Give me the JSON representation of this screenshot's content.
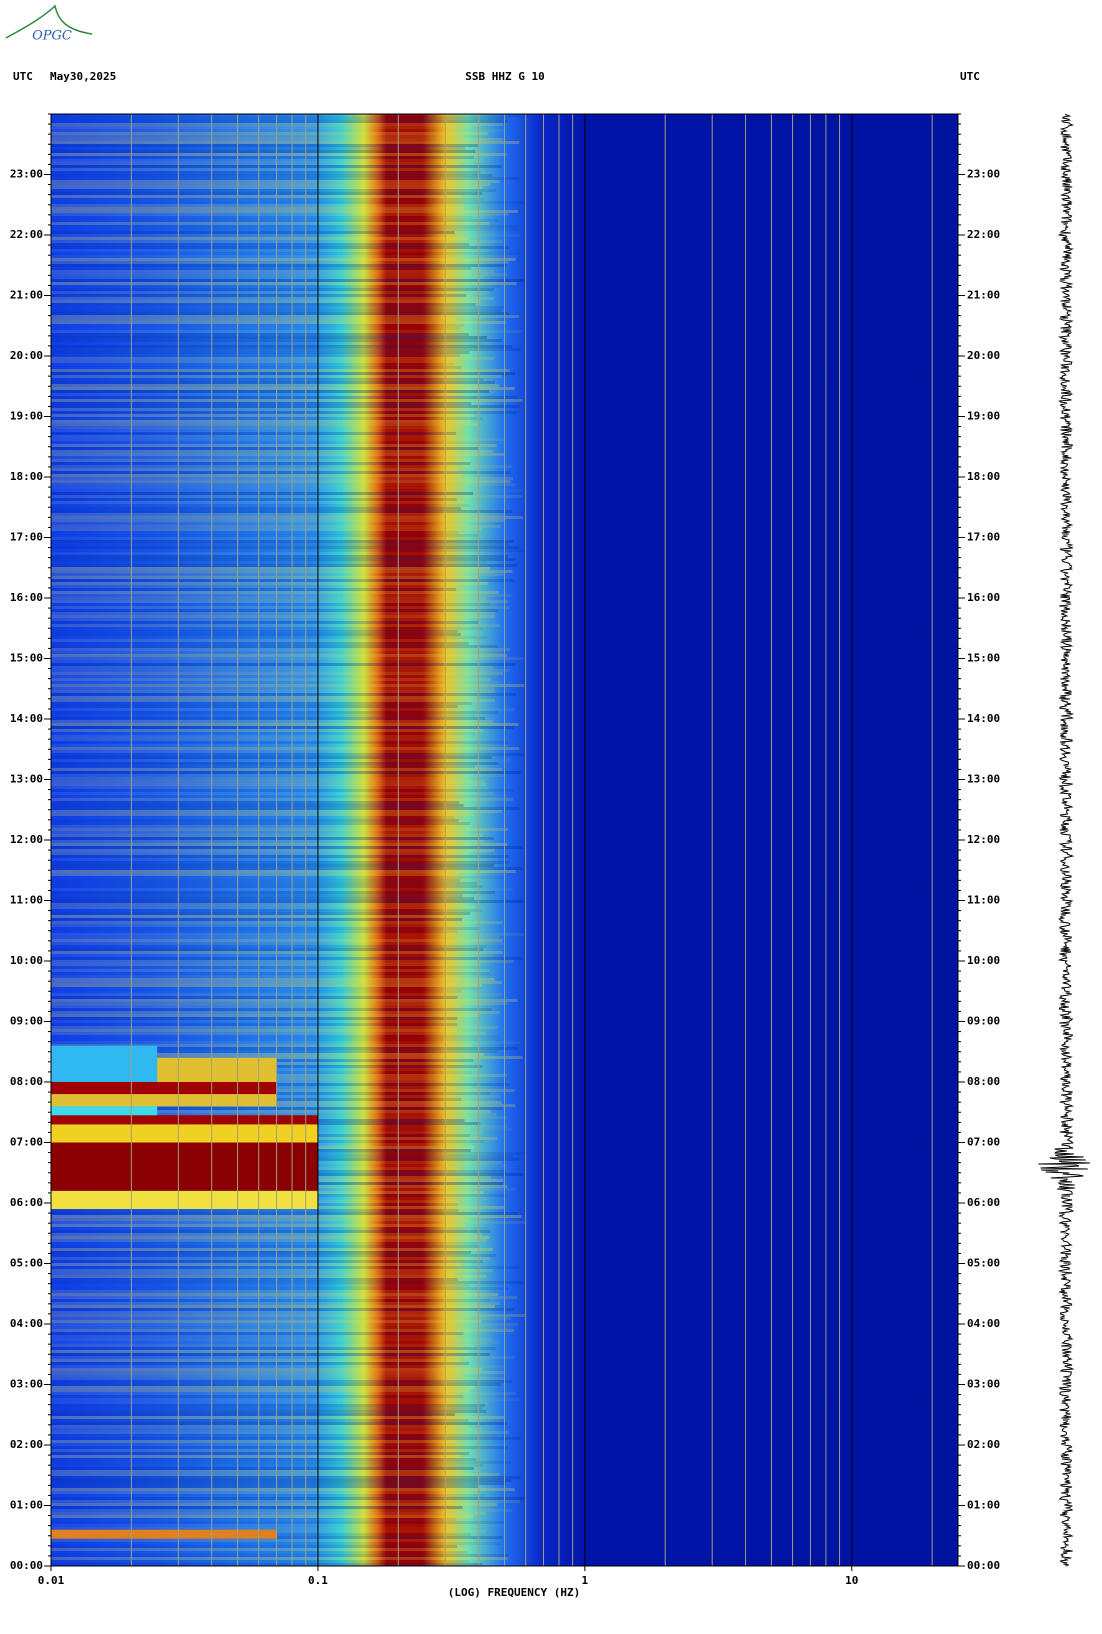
{
  "chart_data": {
    "type": "spectrogram",
    "logo": "OPGC",
    "title": "SSB HHZ G 10",
    "left_label": "UTC",
    "date": "May30,2025",
    "right_label": "UTC",
    "x_label": "(LOG) FREQUENCY (HZ)",
    "xscale": "log",
    "xlim": [
      0.01,
      25
    ],
    "xticks": [
      0.01,
      0.1,
      1,
      10
    ],
    "ylim": [
      0,
      24
    ],
    "yticks": [
      {
        "value": 0,
        "label": "00:00"
      },
      {
        "value": 1,
        "label": "01:00"
      },
      {
        "value": 2,
        "label": "02:00"
      },
      {
        "value": 3,
        "label": "03:00"
      },
      {
        "value": 4,
        "label": "04:00"
      },
      {
        "value": 5,
        "label": "05:00"
      },
      {
        "value": 6,
        "label": "06:00"
      },
      {
        "value": 7,
        "label": "07:00"
      },
      {
        "value": 8,
        "label": "08:00"
      },
      {
        "value": 9,
        "label": "09:00"
      },
      {
        "value": 10,
        "label": "10:00"
      },
      {
        "value": 11,
        "label": "11:00"
      },
      {
        "value": 12,
        "label": "12:00"
      },
      {
        "value": 13,
        "label": "13:00"
      },
      {
        "value": 14,
        "label": "14:00"
      },
      {
        "value": 15,
        "label": "15:00"
      },
      {
        "value": 16,
        "label": "16:00"
      },
      {
        "value": 17,
        "label": "17:00"
      },
      {
        "value": 18,
        "label": "18:00"
      },
      {
        "value": 19,
        "label": "19:00"
      },
      {
        "value": 20,
        "label": "20:00"
      },
      {
        "value": 21,
        "label": "21:00"
      },
      {
        "value": 22,
        "label": "22:00"
      },
      {
        "value": 23,
        "label": "23:00"
      }
    ],
    "grid": true
  }
}
